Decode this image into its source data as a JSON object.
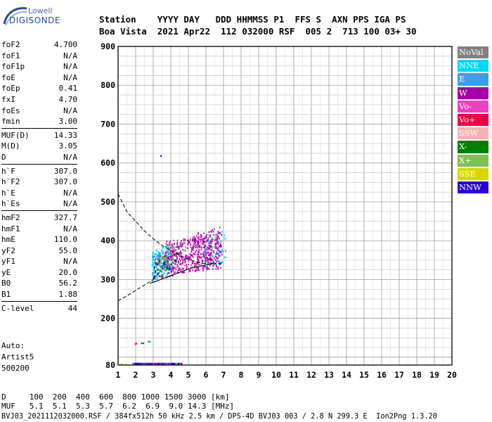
{
  "logo": {
    "top": "Lowell",
    "bottom": "DIGISONDE"
  },
  "header": {
    "line1": "Station    YYYY DAY   DDD HHMMSS P1  FFS S  AXN PPS IGA PS",
    "line2": "Boa Vista  2021 Apr22  112 032000 RSF  005 2  713 100 03+ 30"
  },
  "params": [
    [
      {
        "label": "foF2",
        "value": "4.700"
      },
      {
        "label": "foF1",
        "value": "N/A"
      },
      {
        "label": "foF1p",
        "value": "N/A"
      },
      {
        "label": "foE",
        "value": "N/A"
      },
      {
        "label": "foEp",
        "value": "0.41"
      },
      {
        "label": "fxI",
        "value": "4.70"
      },
      {
        "label": "foEs",
        "value": "N/A"
      },
      {
        "label": "fmin",
        "value": "3.00"
      }
    ],
    [
      {
        "label": "MUF(D)",
        "value": "14.33"
      },
      {
        "label": "M(D)",
        "value": "3.05"
      },
      {
        "label": "D",
        "value": "N/A"
      }
    ],
    [
      {
        "label": "h`F",
        "value": "307.0"
      },
      {
        "label": "h`F2",
        "value": "307.0"
      },
      {
        "label": "h`E",
        "value": "N/A"
      },
      {
        "label": "h`Es",
        "value": "N/A"
      }
    ],
    [
      {
        "label": "hmF2",
        "value": "327.7"
      },
      {
        "label": "hmF1",
        "value": "N/A"
      },
      {
        "label": "hmE",
        "value": "110.0"
      },
      {
        "label": "yF2",
        "value": "55.0"
      },
      {
        "label": "yF1",
        "value": "N/A"
      },
      {
        "label": "yE",
        "value": "20.0"
      },
      {
        "label": "B0",
        "value": "56.2"
      },
      {
        "label": "B1",
        "value": "1.88"
      }
    ],
    [
      {
        "label": "C-level",
        "value": "44"
      }
    ]
  ],
  "auto": {
    "line1": "Auto:",
    "line2": "Artist5",
    "line3": "500200"
  },
  "footer": {
    "d_line": "D     100  200  400  600  800 1000 1500 3000 [km]",
    "muf_line": "MUF   5.1  5.1  5.3  5.7  6.2  6.9  9.0 14.3 [MHz]",
    "info_line": "BVJ03_2021112032000.RSF / 384fx512h 50 kHz 2.5 km / DPS-4D BVJ03 003 / 2.8 N 299.3 E  Ion2Png 1.3.20"
  },
  "legend": [
    {
      "label": "NoVal",
      "color": "#808080"
    },
    {
      "label": "NNE",
      "color": "#00d8f8"
    },
    {
      "label": "E",
      "color": "#3c9cf0"
    },
    {
      "label": "W",
      "color": "#a800a8"
    },
    {
      "label": "Vo-",
      "color": "#f040c0"
    },
    {
      "label": "Vo+",
      "color": "#f00040"
    },
    {
      "label": "SSW",
      "color": "#f8b0b0"
    },
    {
      "label": "X-",
      "color": "#008000"
    },
    {
      "label": "X+",
      "color": "#80c050"
    },
    {
      "label": "SSE",
      "color": "#d8d800"
    },
    {
      "label": "NNW",
      "color": "#2800d8"
    }
  ],
  "chart_data": {
    "type": "scatter",
    "xlim": [
      1,
      20
    ],
    "ylim": [
      80,
      900
    ],
    "x_ticks": [
      1,
      2,
      3,
      4,
      5,
      6,
      7,
      8,
      9,
      10,
      11,
      12,
      13,
      14,
      15,
      16,
      17,
      18,
      19,
      20
    ],
    "y_ticks": [
      80,
      200,
      300,
      400,
      500,
      600,
      700,
      800,
      900
    ],
    "grid": true,
    "clusters": [
      {
        "color": "#a800a8",
        "x_range": [
          3.6,
          6.9
        ],
        "y_range": [
          315,
          420
        ],
        "count": 380
      },
      {
        "color": "#a800a8",
        "x_range": [
          5.2,
          6.8
        ],
        "y_range": [
          340,
          440
        ],
        "count": 120
      },
      {
        "color": "#00d8f8",
        "x_range": [
          2.9,
          3.9
        ],
        "y_range": [
          300,
          395
        ],
        "count": 140
      },
      {
        "color": "#00d8f8",
        "x_range": [
          5.8,
          7.1
        ],
        "y_range": [
          330,
          430
        ],
        "count": 50
      },
      {
        "color": "#3c9cf0",
        "x_range": [
          2.9,
          4.1
        ],
        "y_range": [
          295,
          390
        ],
        "count": 90
      },
      {
        "color": "#f040c0",
        "x_range": [
          3.8,
          5.8
        ],
        "y_range": [
          320,
          420
        ],
        "count": 70
      },
      {
        "color": "#f00040",
        "x_range": [
          2.9,
          4.5
        ],
        "y_range": [
          300,
          380
        ],
        "count": 35
      },
      {
        "color": "#808080",
        "x_range": [
          3.4,
          4.6
        ],
        "y_range": [
          330,
          400
        ],
        "count": 40
      },
      {
        "color": "#008000",
        "x_range": [
          3.2,
          4.4
        ],
        "y_range": [
          320,
          380
        ],
        "count": 20
      },
      {
        "color": "#d8d800",
        "x_range": [
          3.0,
          4.0
        ],
        "y_range": [
          310,
          370
        ],
        "count": 15
      },
      {
        "color": "#2800d8",
        "x_range": [
          3.0,
          4.4
        ],
        "y_range": [
          300,
          370
        ],
        "count": 30
      }
    ],
    "points": [
      {
        "x": 3.4,
        "y": 620,
        "color": "#2800d8"
      },
      {
        "x": 1.95,
        "y": 136,
        "color": "#f00040"
      },
      {
        "x": 2.0,
        "y": 137,
        "color": "#f00040"
      },
      {
        "x": 2.3,
        "y": 138,
        "color": "#008000"
      },
      {
        "x": 2.4,
        "y": 138,
        "color": "#008000"
      },
      {
        "x": 2.7,
        "y": 142,
        "color": "#008000"
      },
      {
        "x": 2.8,
        "y": 142,
        "color": "#00d8f8"
      },
      {
        "x": 1.1,
        "y": 84,
        "color": "#d8d800"
      },
      {
        "x": 1.2,
        "y": 84,
        "color": "#d8d800"
      },
      {
        "x": 1.4,
        "y": 84,
        "color": "#d8d800"
      }
    ],
    "bottom_strip": {
      "x_range": [
        1.8,
        4.6
      ],
      "y": 84,
      "colors": [
        "#a800a8",
        "#2800d8",
        "#3c9cf0"
      ]
    },
    "dashed_upper": [
      [
        1,
        520
      ],
      [
        1.5,
        475
      ],
      [
        2,
        450
      ],
      [
        2.5,
        425
      ],
      [
        3,
        405
      ],
      [
        3.5,
        388
      ],
      [
        4,
        375
      ],
      [
        4.5,
        362
      ],
      [
        5,
        352
      ],
      [
        5.5,
        345
      ],
      [
        6,
        340
      ],
      [
        6.5,
        340
      ],
      [
        7,
        343
      ]
    ],
    "dashed_lower": [
      [
        1,
        245
      ],
      [
        1.5,
        258
      ],
      [
        2,
        272
      ],
      [
        2.5,
        286
      ],
      [
        3,
        300
      ],
      [
        3.2,
        310
      ]
    ],
    "trace_solid": [
      [
        2.8,
        290
      ],
      [
        3.3,
        298
      ],
      [
        4,
        310
      ],
      [
        4.5,
        318
      ],
      [
        5,
        327
      ],
      [
        5.5,
        333
      ],
      [
        6,
        337
      ],
      [
        6.5,
        343
      ]
    ],
    "trace_dotted": [
      [
        3.2,
        310
      ],
      [
        3.6,
        330
      ],
      [
        4,
        355
      ]
    ]
  }
}
